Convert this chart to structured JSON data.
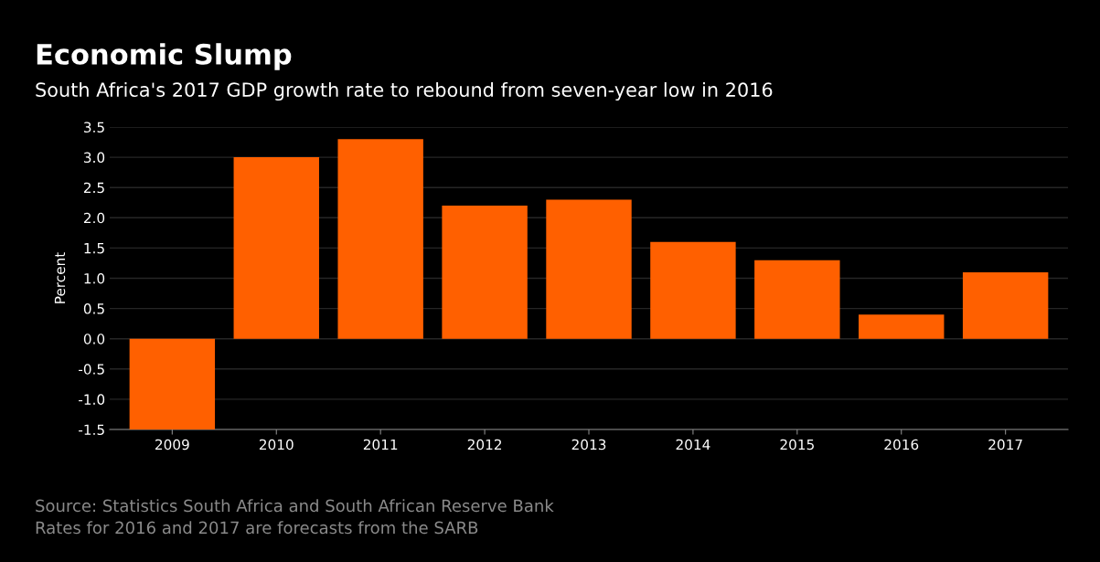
{
  "chart_data": {
    "type": "bar",
    "title": "Economic Slump",
    "subtitle": "South Africa's 2017 GDP growth rate to rebound from seven-year low in 2016",
    "ylabel": "Percent",
    "categories": [
      "2009",
      "2010",
      "2011",
      "2012",
      "2013",
      "2014",
      "2015",
      "2016",
      "2017"
    ],
    "values": [
      -1.5,
      3.0,
      3.3,
      2.2,
      2.3,
      1.6,
      1.3,
      0.4,
      1.1
    ],
    "color": "#ff6000",
    "ylim": [
      -1.5,
      3.5
    ],
    "yticks": [
      {
        "value": 3.5,
        "label": "3.5"
      },
      {
        "value": 3.0,
        "label": "3.0"
      },
      {
        "value": 2.5,
        "label": "2.5"
      },
      {
        "value": 2.0,
        "label": "2.0"
      },
      {
        "value": 1.5,
        "label": "1.5"
      },
      {
        "value": 1.0,
        "label": "1.0"
      },
      {
        "value": 0.5,
        "label": "0.5"
      },
      {
        "value": 0.0,
        "label": "0.0"
      },
      {
        "value": -0.5,
        "label": "-0.5"
      },
      {
        "value": -1.0,
        "label": "-1.0"
      },
      {
        "value": -1.5,
        "label": "-1.5"
      }
    ],
    "grid": "y",
    "annotations": [
      "Source: Statistics South Africa and South African Reserve Bank",
      "Rates for 2016 and 2017 are forecasts from the SARB"
    ]
  }
}
